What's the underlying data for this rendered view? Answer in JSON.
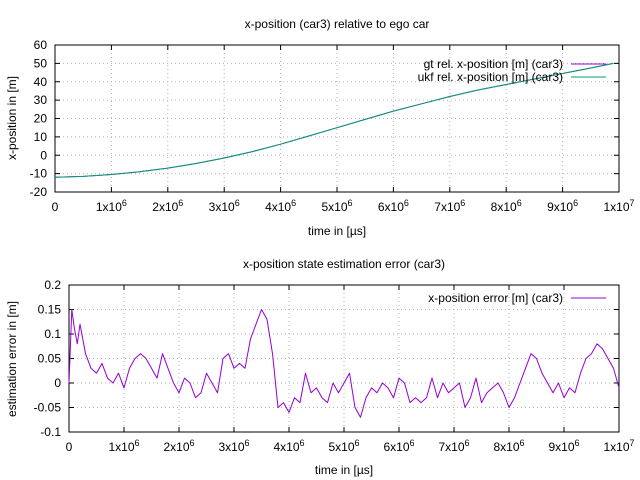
{
  "colors": {
    "gt": "#9400d3",
    "ukf": "#009e73",
    "error": "#9400d3",
    "grid": "#b3b3b3",
    "axis": "#000000"
  },
  "chart_data": [
    {
      "type": "line",
      "title": "x-position (car3) relative to ego car",
      "xlabel": "time in [µs]",
      "ylabel": "x-position in [m]",
      "xlim": [
        0,
        10000000
      ],
      "ylim": [
        -20,
        60
      ],
      "x_ticks": [
        "0",
        "1x10^6",
        "2x10^6",
        "3x10^6",
        "4x10^6",
        "5x10^6",
        "6x10^6",
        "7x10^6",
        "8x10^6",
        "9x10^6",
        "1x10^7"
      ],
      "y_ticks": [
        "-20",
        "-10",
        "0",
        "10",
        "20",
        "30",
        "40",
        "50",
        "60"
      ],
      "grid": true,
      "legend_position": "top-right",
      "x": [
        0,
        500000,
        1000000,
        1500000,
        2000000,
        2500000,
        3000000,
        3500000,
        4000000,
        4500000,
        5000000,
        5500000,
        6000000,
        6500000,
        7000000,
        7500000,
        8000000,
        8500000,
        9000000,
        9500000,
        9900000
      ],
      "series": [
        {
          "name": "gt rel. x-position [m] (car3)",
          "color_key": "gt",
          "values": [
            -12,
            -11.5,
            -10.5,
            -9,
            -7,
            -4.5,
            -1.5,
            2,
            6,
            10.5,
            15,
            19.5,
            24,
            28,
            32,
            35.5,
            38.5,
            41.5,
            44.5,
            47.5,
            50
          ]
        },
        {
          "name": "ukf rel. x-position [m] (car3)",
          "color_key": "ukf",
          "values": [
            -12,
            -11.5,
            -10.5,
            -9,
            -7,
            -4.5,
            -1.5,
            2,
            6,
            10.5,
            15,
            19.5,
            24,
            28,
            32,
            35.5,
            38.5,
            41.5,
            44.5,
            47.5,
            50
          ]
        }
      ]
    },
    {
      "type": "line",
      "title": "x-position state estimation error (car3)",
      "xlabel": "time in [µs]",
      "ylabel": "estimation error in [m]",
      "xlim": [
        0,
        10000000
      ],
      "ylim": [
        -0.1,
        0.2
      ],
      "x_ticks": [
        "0",
        "1x10^6",
        "2x10^6",
        "3x10^6",
        "4x10^6",
        "5x10^6",
        "6x10^6",
        "7x10^6",
        "8x10^6",
        "9x10^6",
        "1x10^7"
      ],
      "y_ticks": [
        "-0.1",
        "-0.05",
        "0",
        "0.05",
        "0.1",
        "0.15",
        "0.2"
      ],
      "grid": true,
      "legend_position": "top-right",
      "x": [
        0,
        50000,
        100000,
        150000,
        200000,
        300000,
        400000,
        500000,
        600000,
        700000,
        800000,
        900000,
        1000000,
        1100000,
        1200000,
        1300000,
        1400000,
        1500000,
        1600000,
        1700000,
        1800000,
        1900000,
        2000000,
        2100000,
        2200000,
        2300000,
        2400000,
        2500000,
        2600000,
        2700000,
        2800000,
        2900000,
        3000000,
        3100000,
        3200000,
        3300000,
        3400000,
        3500000,
        3600000,
        3700000,
        3800000,
        3900000,
        4000000,
        4100000,
        4200000,
        4300000,
        4400000,
        4500000,
        4600000,
        4700000,
        4800000,
        4900000,
        5000000,
        5100000,
        5200000,
        5300000,
        5400000,
        5500000,
        5600000,
        5700000,
        5800000,
        5900000,
        6000000,
        6100000,
        6200000,
        6300000,
        6400000,
        6500000,
        6600000,
        6700000,
        6800000,
        6900000,
        7000000,
        7100000,
        7200000,
        7300000,
        7400000,
        7500000,
        7600000,
        7700000,
        7800000,
        7900000,
        8000000,
        8100000,
        8200000,
        8300000,
        8400000,
        8500000,
        8600000,
        8700000,
        8800000,
        8900000,
        9000000,
        9100000,
        9200000,
        9300000,
        9400000,
        9500000,
        9600000,
        9700000,
        9800000,
        9900000,
        10000000
      ],
      "series": [
        {
          "name": "x-position error [m] (car3)",
          "color_key": "error",
          "values": [
            0.0,
            0.15,
            0.11,
            0.08,
            0.12,
            0.06,
            0.03,
            0.02,
            0.04,
            0.01,
            0.0,
            0.02,
            -0.01,
            0.03,
            0.05,
            0.06,
            0.05,
            0.03,
            0.01,
            0.06,
            0.03,
            0.0,
            -0.02,
            0.01,
            0.0,
            -0.03,
            -0.02,
            0.02,
            0.0,
            -0.02,
            0.05,
            0.06,
            0.03,
            0.04,
            0.03,
            0.09,
            0.12,
            0.15,
            0.13,
            0.06,
            -0.05,
            -0.04,
            -0.06,
            -0.03,
            -0.04,
            0.02,
            -0.02,
            -0.01,
            -0.03,
            -0.04,
            0.0,
            -0.02,
            0.0,
            0.02,
            -0.05,
            -0.07,
            -0.03,
            -0.01,
            -0.02,
            0.0,
            -0.01,
            -0.03,
            0.01,
            0.0,
            -0.04,
            -0.03,
            -0.04,
            -0.03,
            0.01,
            -0.03,
            0.0,
            -0.02,
            -0.01,
            0.0,
            -0.05,
            -0.03,
            0.01,
            -0.04,
            -0.02,
            -0.01,
            0.0,
            -0.02,
            -0.05,
            -0.03,
            0.0,
            0.03,
            0.06,
            0.05,
            0.02,
            0.0,
            -0.02,
            0.0,
            -0.03,
            -0.01,
            -0.02,
            0.02,
            0.05,
            0.06,
            0.08,
            0.07,
            0.05,
            0.03,
            -0.01
          ]
        }
      ]
    }
  ]
}
